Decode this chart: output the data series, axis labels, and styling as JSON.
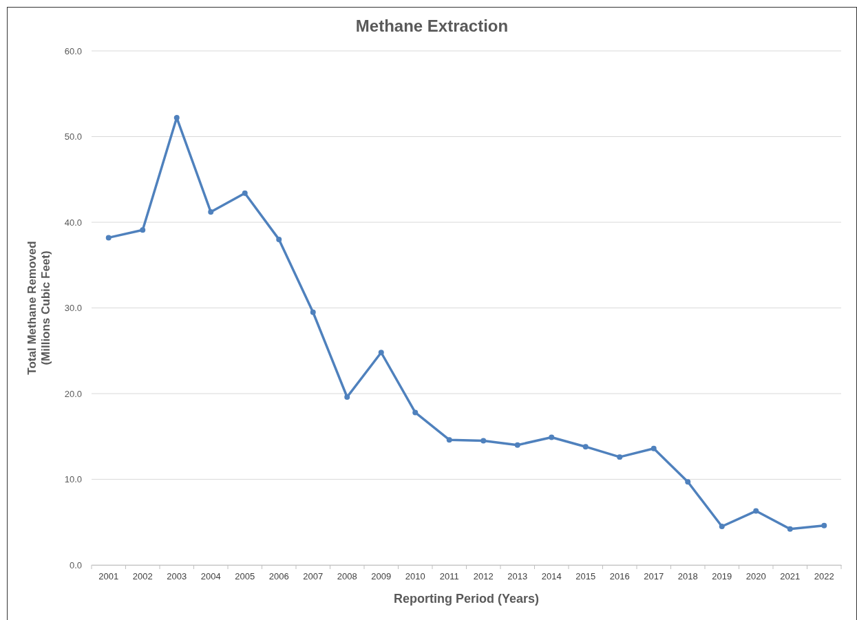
{
  "chart_data": {
    "type": "line",
    "title": "Methane Extraction",
    "xlabel": "Reporting Period (Years)",
    "ylabel": "Total Methane Removed\n(Millions Cubic Feet)",
    "categories": [
      "2001",
      "2002",
      "2003",
      "2004",
      "2005",
      "2006",
      "2007",
      "2008",
      "2009",
      "2010",
      "2011",
      "2012",
      "2013",
      "2014",
      "2015",
      "2016",
      "2017",
      "2018",
      "2019",
      "2020",
      "2021",
      "2022"
    ],
    "series": [
      {
        "color": "#4f81bd",
        "values": [
          38.2,
          39.1,
          52.2,
          41.2,
          43.4,
          38.0,
          29.5,
          19.6,
          24.8,
          17.8,
          14.6,
          14.5,
          14.0,
          14.9,
          13.8,
          12.6,
          13.6,
          9.7,
          4.5,
          6.3,
          4.2,
          4.6
        ]
      }
    ],
    "ylim": [
      0,
      60
    ],
    "yticks": [
      {
        "value": 0,
        "label": "0.0"
      },
      {
        "value": 10,
        "label": "10.0"
      },
      {
        "value": 20,
        "label": "20.0"
      },
      {
        "value": 30,
        "label": "30.0"
      },
      {
        "value": 40,
        "label": "40.0"
      },
      {
        "value": 50,
        "label": "50.0"
      },
      {
        "value": 60,
        "label": "60.0"
      }
    ],
    "grid": "y",
    "marker": "circle",
    "line_style": "solid"
  }
}
